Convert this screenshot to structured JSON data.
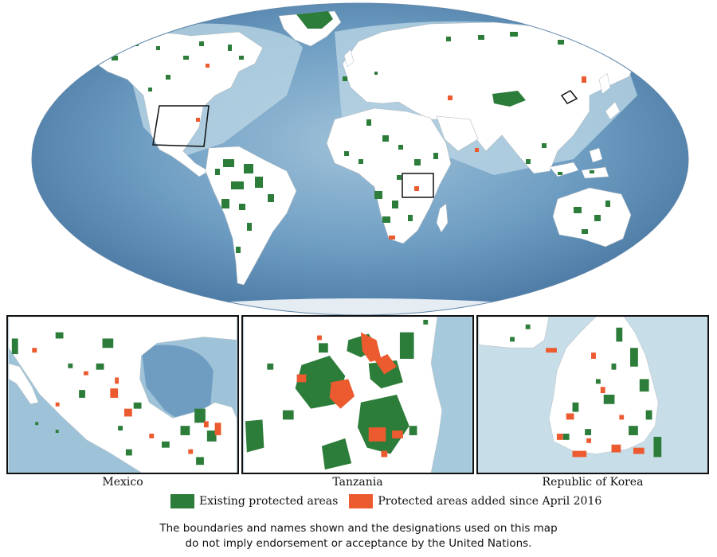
{
  "colors": {
    "existing": "#2d7d3a",
    "added": "#ec5b2f",
    "ocean_light": "#b9d3e2",
    "ocean_dark": "#4f7fab",
    "land": "#ffffff"
  },
  "map": {
    "projection": "world-robinson",
    "inset_markers": [
      "Mexico",
      "Tanzania",
      "Republic of Korea"
    ]
  },
  "insets": [
    {
      "id": "mexico",
      "caption": "Mexico"
    },
    {
      "id": "tanzania",
      "caption": "Tanzania"
    },
    {
      "id": "korea",
      "caption": "Republic of Korea"
    }
  ],
  "legend": {
    "existing_label": "Existing protected areas",
    "added_label": "Protected areas added since April 2016"
  },
  "disclaimer": {
    "line1": "The boundaries and names shown and the designations used on this map",
    "line2": "do not imply endorsement or acceptance by the United Nations."
  }
}
